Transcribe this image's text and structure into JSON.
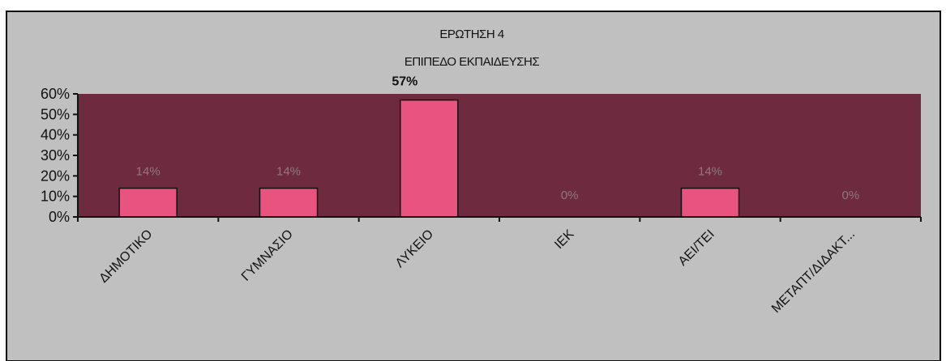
{
  "chart_data": {
    "type": "bar",
    "title": "ΕΡΩΤΗΣΗ 4",
    "subtitle": "ΕΠΙΠΕΔΟ ΕΚΠΑΙΔΕΥΣΗΣ",
    "categories": [
      "ΔΗΜΟΤΙΚΟ",
      "ΓΥΜΝΑΣΙΟ",
      "ΛΥΚΕΙΟ",
      "ΙΕΚ",
      "ΑΕΙ/ΤΕΙ",
      "ΜΕΤΑΠΤ/ΔΙΔΑΚΤ..."
    ],
    "values": [
      14,
      14,
      57,
      0,
      14,
      0
    ],
    "data_labels": [
      "14%",
      "14%",
      "57%",
      "0%",
      "14%",
      "0%"
    ],
    "ylim": [
      0,
      60
    ],
    "yticks": [
      "0%",
      "10%",
      "20%",
      "30%",
      "40%",
      "50%",
      "60%"
    ],
    "xlabel": "",
    "ylabel": "",
    "grid": false,
    "colors": {
      "outer_background": "#c0c0c0",
      "plot_background": "#6e2a3e",
      "bar_fill": "#e8547f",
      "bar_stroke": "#111111",
      "data_label": "#8a7a7e"
    }
  }
}
